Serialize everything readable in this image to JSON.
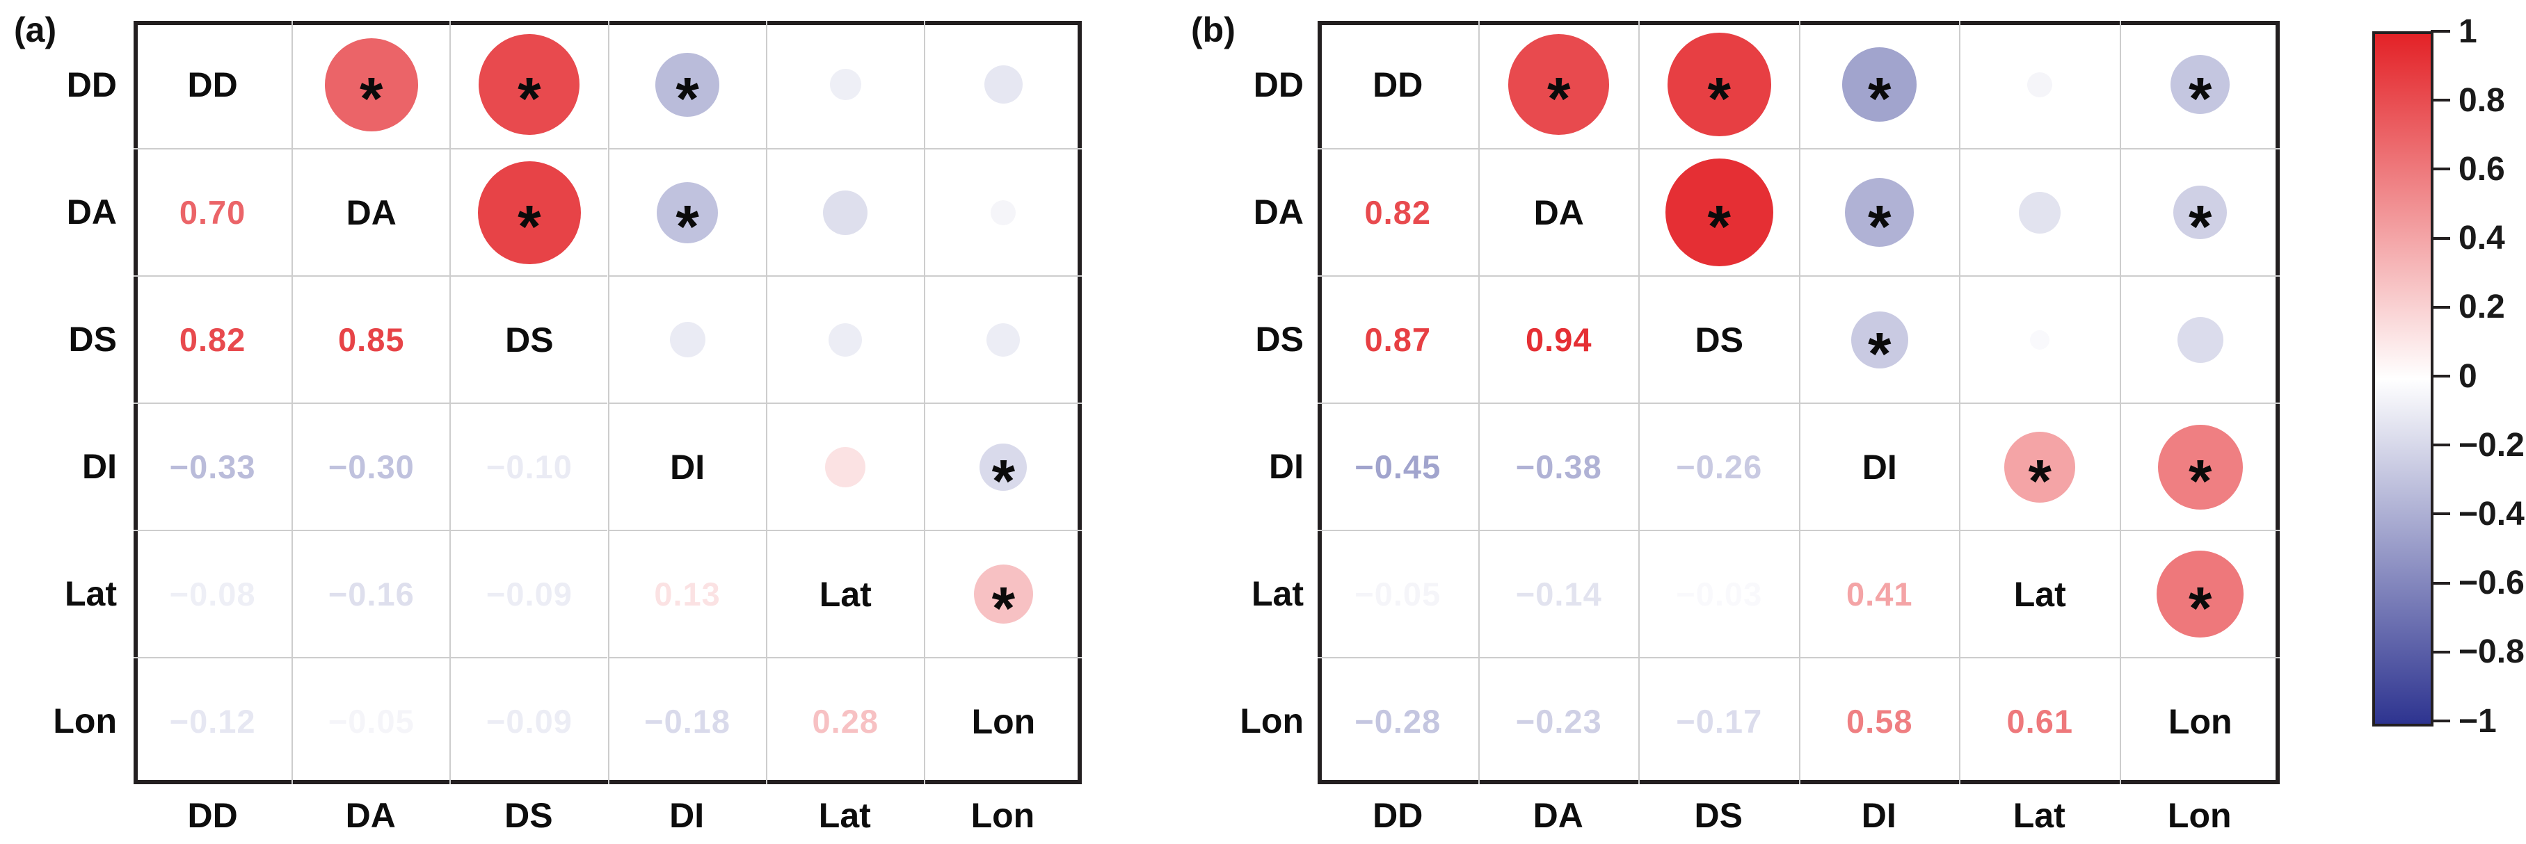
{
  "chart_data": {
    "type": "heatmap",
    "subtype": "correlation-matrix-pair",
    "description": "Two corrplot-style correlation matrices: numbers in lower triangle, size/color-coded circles with significance asterisks in upper triangle, shared red-white-blue colorbar",
    "variables": [
      "DD",
      "DA",
      "DS",
      "DI",
      "Lat",
      "Lon"
    ],
    "panels": [
      {
        "label": "(a)",
        "variables": [
          "DD",
          "DA",
          "DS",
          "DI",
          "Lat",
          "Lon"
        ],
        "lower_triangle_rows": [
          "DA",
          "DS",
          "DI",
          "Lat",
          "Lon"
        ],
        "lower_triangle": [
          [
            0.7
          ],
          [
            0.82,
            0.85
          ],
          [
            -0.33,
            -0.3,
            -0.1
          ],
          [
            -0.08,
            -0.16,
            -0.09,
            0.13
          ],
          [
            -0.12,
            -0.05,
            -0.09,
            -0.18,
            0.28
          ]
        ],
        "significant_pairs": [
          [
            "DD",
            "DA"
          ],
          [
            "DD",
            "DS"
          ],
          [
            "DD",
            "DI"
          ],
          [
            "DA",
            "DS"
          ],
          [
            "DA",
            "DI"
          ],
          [
            "DI",
            "Lon"
          ],
          [
            "Lat",
            "Lon"
          ]
        ]
      },
      {
        "label": "(b)",
        "variables": [
          "DD",
          "DA",
          "DS",
          "DI",
          "Lat",
          "Lon"
        ],
        "lower_triangle_rows": [
          "DA",
          "DS",
          "DI",
          "Lat",
          "Lon"
        ],
        "lower_triangle": [
          [
            0.82
          ],
          [
            0.87,
            0.94
          ],
          [
            -0.45,
            -0.38,
            -0.26
          ],
          [
            -0.05,
            -0.14,
            -0.03,
            0.41
          ],
          [
            -0.28,
            -0.23,
            -0.17,
            0.58,
            0.61
          ]
        ],
        "significant_pairs": [
          [
            "DD",
            "DA"
          ],
          [
            "DD",
            "DS"
          ],
          [
            "DD",
            "DI"
          ],
          [
            "DD",
            "Lon"
          ],
          [
            "DA",
            "DS"
          ],
          [
            "DA",
            "DI"
          ],
          [
            "DA",
            "Lon"
          ],
          [
            "DS",
            "DI"
          ],
          [
            "DI",
            "Lat"
          ],
          [
            "DI",
            "Lon"
          ],
          [
            "Lat",
            "Lon"
          ]
        ]
      }
    ],
    "colorbar": {
      "range": [
        -1,
        1
      ],
      "tick_labels": [
        "1",
        "0.8",
        "0.6",
        "0.4",
        "0.2",
        "0",
        "−0.2",
        "−0.4",
        "−0.6",
        "−0.8",
        "−1"
      ],
      "max_color": "#E32227",
      "mid_color": "#FFFFFF",
      "min_color": "#2E3490"
    },
    "significance_marker": "*",
    "legend_position": "right"
  }
}
